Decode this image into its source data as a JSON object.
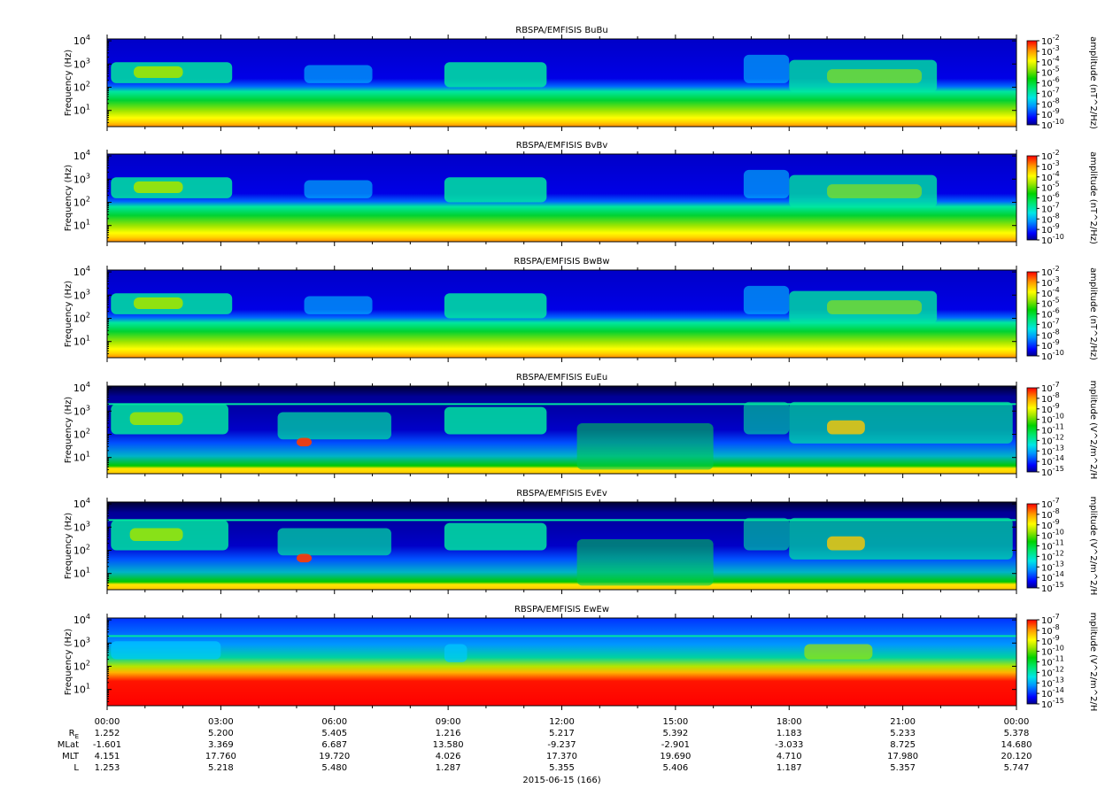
{
  "figure": {
    "date_label": "2015-06-15 (166)",
    "time_ticks": [
      "00:00",
      "03:00",
      "06:00",
      "09:00",
      "12:00",
      "15:00",
      "18:00",
      "21:00",
      "00:00"
    ],
    "ephemeris": [
      {
        "label": "R_E",
        "label_main": "R",
        "label_sub": "E",
        "values": [
          "1.252",
          "5.200",
          "5.405",
          "1.216",
          "5.217",
          "5.392",
          "1.183",
          "5.233",
          "5.378"
        ]
      },
      {
        "label": "MLat",
        "label_main": "MLat",
        "label_sub": "",
        "values": [
          "-1.601",
          "3.369",
          "6.687",
          "13.580",
          "-9.237",
          "-2.901",
          "-3.033",
          "8.725",
          "14.680"
        ]
      },
      {
        "label": "MLT",
        "label_main": "MLT",
        "label_sub": "",
        "values": [
          "4.151",
          "17.760",
          "19.720",
          "4.026",
          "17.370",
          "19.690",
          "4.710",
          "17.980",
          "20.120"
        ]
      },
      {
        "label": "L",
        "label_main": "L",
        "label_sub": "",
        "values": [
          "1.253",
          "5.218",
          "5.480",
          "1.287",
          "5.355",
          "5.406",
          "1.187",
          "5.357",
          "5.747"
        ]
      }
    ]
  },
  "chart_data": [
    {
      "type": "heatmap",
      "title": "RBSPA/EMFISIS  BuBu",
      "ylabel": "Frequency (Hz)",
      "yscale": "log",
      "ylim": [
        2,
        12000
      ],
      "y_ticks": [
        {
          "base": "10",
          "exp": "1"
        },
        {
          "base": "10",
          "exp": "2"
        },
        {
          "base": "10",
          "exp": "3"
        },
        {
          "base": "10",
          "exp": "4"
        }
      ],
      "xlim": [
        "00:00",
        "24:00"
      ],
      "zlabel": "amplitude (nT^2/Hz)",
      "zscale": "log",
      "zlim": [
        1e-10,
        0.01
      ],
      "cbar_ticks": [
        "-2",
        "-3",
        "-4",
        "-5",
        "-6",
        "-7",
        "-8",
        "-9",
        "-10"
      ],
      "style": "B"
    },
    {
      "type": "heatmap",
      "title": "RBSPA/EMFISIS  BvBv",
      "ylabel": "Frequency (Hz)",
      "yscale": "log",
      "ylim": [
        2,
        12000
      ],
      "y_ticks": [
        {
          "base": "10",
          "exp": "1"
        },
        {
          "base": "10",
          "exp": "2"
        },
        {
          "base": "10",
          "exp": "3"
        },
        {
          "base": "10",
          "exp": "4"
        }
      ],
      "xlim": [
        "00:00",
        "24:00"
      ],
      "zlabel": "amplitude (nT^2/Hz)",
      "zscale": "log",
      "zlim": [
        1e-10,
        0.01
      ],
      "cbar_ticks": [
        "-2",
        "-3",
        "-4",
        "-5",
        "-6",
        "-7",
        "-8",
        "-9",
        "-10"
      ],
      "style": "B"
    },
    {
      "type": "heatmap",
      "title": "RBSPA/EMFISIS  BwBw",
      "ylabel": "Frequency (Hz)",
      "yscale": "log",
      "ylim": [
        2,
        12000
      ],
      "y_ticks": [
        {
          "base": "10",
          "exp": "1"
        },
        {
          "base": "10",
          "exp": "2"
        },
        {
          "base": "10",
          "exp": "3"
        },
        {
          "base": "10",
          "exp": "4"
        }
      ],
      "xlim": [
        "00:00",
        "24:00"
      ],
      "zlabel": "amplitude (nT^2/Hz)",
      "zscale": "log",
      "zlim": [
        1e-10,
        0.01
      ],
      "cbar_ticks": [
        "-2",
        "-3",
        "-4",
        "-5",
        "-6",
        "-7",
        "-8",
        "-9",
        "-10"
      ],
      "style": "B"
    },
    {
      "type": "heatmap",
      "title": "RBSPA/EMFISIS  EuEu",
      "ylabel": "Frequency (Hz)",
      "yscale": "log",
      "ylim": [
        2,
        12000
      ],
      "y_ticks": [
        {
          "base": "10",
          "exp": "1"
        },
        {
          "base": "10",
          "exp": "2"
        },
        {
          "base": "10",
          "exp": "3"
        },
        {
          "base": "10",
          "exp": "4"
        }
      ],
      "xlim": [
        "00:00",
        "24:00"
      ],
      "zlabel": "mplitude (V^2/m^2/H",
      "zscale": "log",
      "zlim": [
        1e-15,
        1e-07
      ],
      "cbar_ticks": [
        "-7",
        "-8",
        "-9",
        "-10",
        "-11",
        "-12",
        "-13",
        "-14",
        "-15"
      ],
      "style": "E"
    },
    {
      "type": "heatmap",
      "title": "RBSPA/EMFISIS  EvEv",
      "ylabel": "Frequency (Hz)",
      "yscale": "log",
      "ylim": [
        2,
        12000
      ],
      "y_ticks": [
        {
          "base": "10",
          "exp": "1"
        },
        {
          "base": "10",
          "exp": "2"
        },
        {
          "base": "10",
          "exp": "3"
        },
        {
          "base": "10",
          "exp": "4"
        }
      ],
      "xlim": [
        "00:00",
        "24:00"
      ],
      "zlabel": "mplitude (V^2/m^2/H",
      "zscale": "log",
      "zlim": [
        1e-15,
        1e-07
      ],
      "cbar_ticks": [
        "-7",
        "-8",
        "-9",
        "-10",
        "-11",
        "-12",
        "-13",
        "-14",
        "-15"
      ],
      "style": "E"
    },
    {
      "type": "heatmap",
      "title": "RBSPA/EMFISIS  EwEw",
      "ylabel": "Frequency (Hz)",
      "yscale": "log",
      "ylim": [
        2,
        12000
      ],
      "y_ticks": [
        {
          "base": "10",
          "exp": "1"
        },
        {
          "base": "10",
          "exp": "2"
        },
        {
          "base": "10",
          "exp": "3"
        },
        {
          "base": "10",
          "exp": "4"
        }
      ],
      "xlim": [
        "00:00",
        "24:00"
      ],
      "zlabel": "mplitude (V^2/m^2/H",
      "zscale": "log",
      "zlim": [
        1e-15,
        1e-07
      ],
      "cbar_ticks": [
        "-7",
        "-8",
        "-9",
        "-10",
        "-11",
        "-12",
        "-13",
        "-14",
        "-15"
      ],
      "style": "W"
    }
  ]
}
